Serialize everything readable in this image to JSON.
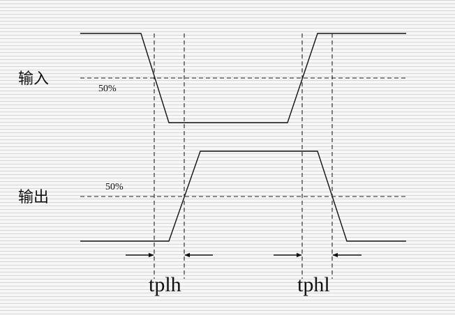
{
  "input_label": "输入",
  "output_label": "输出",
  "input_threshold": "50%",
  "output_threshold": "50%",
  "delay_low_high": "tplh",
  "delay_high_low": "tphl"
}
